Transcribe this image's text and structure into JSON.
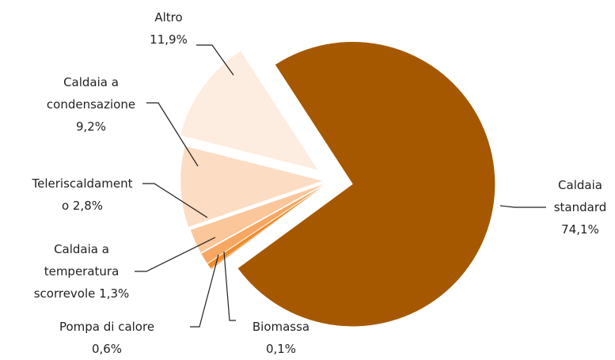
{
  "chart_data": {
    "type": "pie",
    "categories": [
      "Caldaia standard",
      "Biomassa",
      "Pompa di calore",
      "Caldaia a temperatura scorrevole",
      "Teleriscaldamento",
      "Caldaia a condensazione",
      "Altro"
    ],
    "values": [
      74.1,
      0.1,
      0.6,
      1.3,
      2.8,
      9.2,
      11.9
    ],
    "value_labels": [
      "74,1%",
      "0,1%",
      "0,6%",
      "1,3%",
      "2,8%",
      "9,2%",
      "11,9%"
    ],
    "colors": [
      "#a65800",
      "#d86a00",
      "#ef8c2c",
      "#f6a862",
      "#fac69a",
      "#fcdcc2",
      "#fdede0"
    ]
  }
}
